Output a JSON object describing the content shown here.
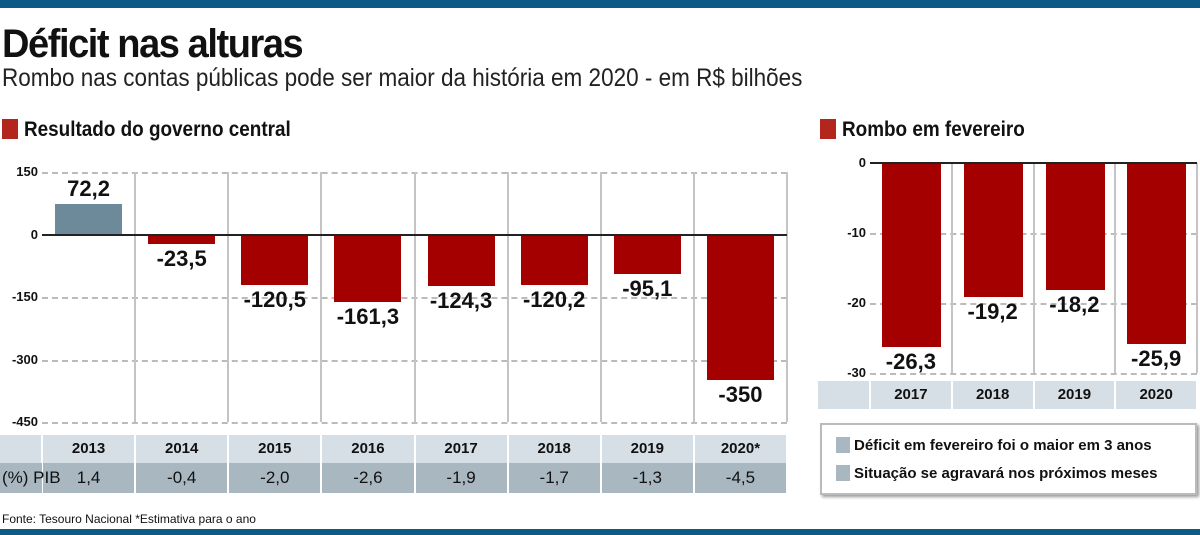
{
  "title": "Déficit nas alturas",
  "subtitle": "Rombo nas contas públicas pode ser maior da história em 2020 - em R$ bilhões",
  "footnote": "Fonte: Tesouro Nacional *Estimativa para o ano",
  "pib_label": "(%) PIB",
  "colors": {
    "deficit": "#a50000",
    "surplus": "#6d8a9a",
    "accent": "#b3261e",
    "rule": "#0e5a87"
  },
  "chart_data": [
    {
      "type": "bar",
      "title": "Resultado do governo central",
      "categories": [
        "2013",
        "2014",
        "2015",
        "2016",
        "2017",
        "2018",
        "2019",
        "2020*"
      ],
      "values": [
        72.2,
        -23.5,
        -120.5,
        -161.3,
        -124.3,
        -120.2,
        -95.1,
        -350
      ],
      "value_labels": [
        "72,2",
        "-23,5",
        "-120,5",
        "-161,3",
        "-124,3",
        "-120,2",
        "-95,1",
        "-350"
      ],
      "pib": [
        "1,4",
        "-0,4",
        "-2,0",
        "-2,6",
        "-1,9",
        "-1,7",
        "-1,3",
        "-4,5"
      ],
      "ylim": [
        -450,
        150
      ],
      "yticks": [
        150,
        0,
        -150,
        -300,
        -450
      ],
      "grid": true
    },
    {
      "type": "bar",
      "title": "Rombo em fevereiro",
      "categories": [
        "2017",
        "2018",
        "2019",
        "2020"
      ],
      "values": [
        -26.3,
        -19.2,
        -18.2,
        -25.9
      ],
      "value_labels": [
        "-26,3",
        "-19,2",
        "-18,2",
        "-25,9"
      ],
      "ylim": [
        -30,
        0
      ],
      "yticks": [
        0,
        -10,
        -20,
        -30
      ],
      "grid": true
    }
  ],
  "legend": {
    "items": [
      "Déficit em fevereiro foi o maior em 3 anos",
      "Situação se agravará nos próximos meses"
    ]
  }
}
